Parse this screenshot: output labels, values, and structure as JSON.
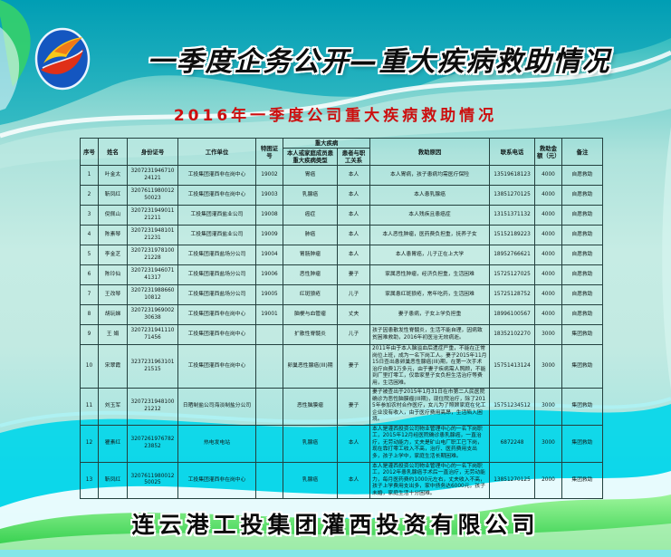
{
  "header": {
    "title": "一季度企务公开—重大疾病救助情况",
    "subtitle": "2016年一季度公司重大疾病救助情况"
  },
  "footer": {
    "company": "连云港工投集团灌西投资有限公司"
  },
  "colors": {
    "banner_teal": "#0aa2b4",
    "subtitle_red": "#cc0f0f",
    "table_mint": "#c6ece4",
    "bottom_cyan": "#00d6ea",
    "wave_green": "#2fce4e",
    "logo_blue": "#1456c0",
    "logo_red": "#e03018",
    "logo_yellow": "#f8c818"
  },
  "table": {
    "group_header": "重大疾病",
    "headers": {
      "no": "序号",
      "name": "姓名",
      "id": "身份证号",
      "unit": "工作单位",
      "cert": "特困证号",
      "disease": "本人或家庭成员患重大疾病类型",
      "relation": "患者与职工关系",
      "reason": "救助原因",
      "phone": "联系电话",
      "amount": "救助金额（元）",
      "note": "备注"
    },
    "col_keys": [
      "no",
      "name",
      "id",
      "unit",
      "cert",
      "disease",
      "relation",
      "reason",
      "phone",
      "amount",
      "note"
    ],
    "rows": [
      [
        "1",
        "叶金太",
        "320723194671024121",
        "工投集团灌西非在岗中心",
        "19002",
        "胃癌",
        "本人",
        "本人胃病，孩子患病均需医疗保险",
        "13519618123",
        "4000",
        "自愿救助"
      ],
      [
        "2",
        "靳凤红",
        "320761198001250023",
        "工投集团灌西非在岗中心",
        "19003",
        "乳腺癌",
        "本人",
        "本人患乳腺癌",
        "13851270125",
        "4000",
        "自愿救助"
      ],
      [
        "3",
        "倪佩山",
        "320723194901121211",
        "工投集团灌西盐业公司",
        "19008",
        "癌症",
        "本人",
        "本人残疾且患癌症",
        "13151371132",
        "4000",
        "自愿救助"
      ],
      [
        "4",
        "陈素琴",
        "320723194810121231",
        "工投集团灌西盐业公司",
        "19009",
        "肺癌",
        "本人",
        "本人恶性肿瘤，医药费负担重，抚养子女",
        "15152189223",
        "4000",
        "自愿救助"
      ],
      [
        "5",
        "李金芝",
        "320723197810021228",
        "工投集团灌西盐场分公司",
        "19004",
        "胃肠肿瘤",
        "本人",
        "本人患胃癌，儿子正在上大学",
        "18952766621",
        "4000",
        "自愿救助"
      ],
      [
        "6",
        "陈玲仙",
        "320723194607141317",
        "工投集团灌西盐场分公司",
        "19006",
        "恶性肿瘤",
        "妻子",
        "家属恶性肿瘤，经济负担重，生活困难",
        "15725127025",
        "4000",
        "自愿救助"
      ],
      [
        "7",
        "王改琴",
        "320723198866010812",
        "工投集团灌西盐场分公司",
        "19005",
        "红斑狼疮",
        "儿子",
        "家属患红斑狼疮，常年吃药，生活困难",
        "15725128752",
        "4000",
        "自愿救助"
      ],
      [
        "8",
        "胡玩娣",
        "320723196900230638",
        "工投集团灌西非在岗中心",
        "19001",
        "脑梗与血管瘤",
        "丈夫",
        "妻子患病，子女上学负担重",
        "18996100567",
        "4000",
        "自愿救助"
      ],
      [
        "9",
        "王  娟",
        "320723194111071456",
        "工投集团灌西非在岗中心",
        "",
        "扩散性脊髓炎",
        "儿子",
        "孩子因患散发性脊髓炎，生活不能自理，因病致贫困难救助，2016年初医治无效病逝。",
        "18352102270",
        "3000",
        "集团救助"
      ],
      [
        "10",
        "宋翠霞",
        "323723196310121515",
        "工投集团灌西非在岗中心",
        "",
        "卵巢恶性腺癌(III)期",
        "妻子",
        "2011年由于本人脑溢血后遗症严重，不能在正常岗位上班，成为一名下岗工人。妻子2015年11月15日查出患卵巢恶性腺癌(III)期，在第一次手术治疗自费1万多元，由于妻子疾病需人照顾，不能到厂里打零工，仅靠家里子女负担生活治疗等费用，生活困难。",
        "15751413124",
        "3000",
        "集团救助"
      ],
      [
        "11",
        "刘玉军",
        "320723194810021212",
        "日晒制盐公司海淡制盐分公司",
        "",
        "恶性脑膜瘤",
        "妻子",
        "妻子被查出于2015年1月31日在市第二人民医院确诊为恶性脑膜瘤(III期)，现住院治疗，除了2015年参加农村合作医疗，女儿为了照顾家庭在化工企业没有收入，由于医疗费用高昂，生活陷入困境。",
        "15751234512",
        "3000",
        "集团救助"
      ],
      [
        "12",
        "瞿素红",
        "320726197678223852",
        "热电发电站",
        "",
        "乳腺癌",
        "本人",
        "本人是灌西投资公司物业管理中心的一名下岗职工，2015年12月经医院确诊患乳腺癌，一直治疗，无劳动能力，丈夫是矿山电厂职工已下岗，现在靠打零工收入不高，治疗、医药费用支出多，孩子上学中，家庭生活长期困难。",
        "6872248",
        "3000",
        "集团救助"
      ],
      [
        "13",
        "靳凤红",
        "320761198001250025",
        "工投集团灌西非在岗中心",
        "",
        "乳腺癌",
        "本人",
        "本人是灌西投资公司物业管理中心的一名下岗职工，2012年患乳腺癌手术后一直治疗，无劳动能力，每月医药费约1000元左右，丈夫收入不高，孩子上学费用支出多，家中债务达6000元，孩子未婚，家庭生活十分困难。",
        "13851270125",
        "2000",
        "集团救助"
      ]
    ]
  }
}
